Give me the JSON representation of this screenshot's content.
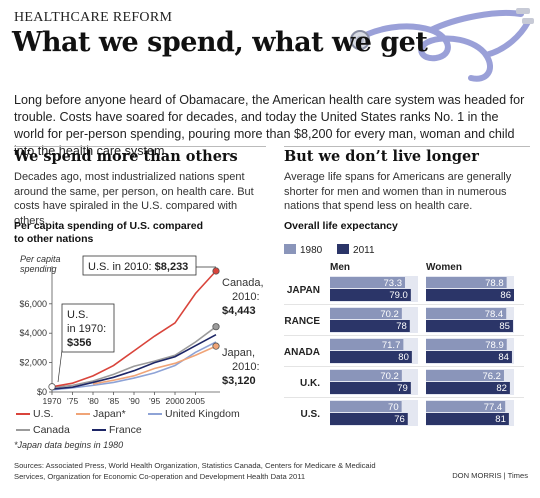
{
  "kicker": "HEALTHCARE REFORM",
  "headline": "What we spend, what we get",
  "intro": "Long before anyone heard of Obamacare, the American health care system was headed for trouble. Costs have soared for decades, and today the United States ranks No. 1 in the world for per-person spending, pouring more than $8,200 for every man, woman and child into the health care system.",
  "left": {
    "heading": "We spend more than others",
    "body": "Decades ago, most industrialized nations spent around the same, per person, on health care. But costs have spiraled in the U.S. compared with others."
  },
  "right": {
    "heading": "But we don’t live longer",
    "body": "Average life spans for Americans are generally shorter for men and women than in numerous nations that spend less on health care."
  },
  "colors": {
    "us": "#d9443b",
    "japan": "#f0a477",
    "uk": "#8ea3d6",
    "canada": "#9b9b9b",
    "france": "#1d2666",
    "bar1980": "#8a95ba",
    "bar2011": "#2b3568",
    "rowbg": "#e4e7f1"
  },
  "spending_chart_text": {
    "title_line1": "Per capita spending of U.S. compared",
    "title_line2": "to other nations",
    "yaxis_label_line1": "Per capita",
    "yaxis_label_line2": "spending",
    "callout_us2010": "U.S. in 2010: ",
    "callout_us2010_value": "$8,233",
    "callout_us1970_l1": "U.S.",
    "callout_us1970_l2": "in 1970:",
    "callout_us1970_value": "$356",
    "callout_canada_l1": "Canada,",
    "callout_canada_l2": "2010:",
    "callout_canada_value": "$4,443",
    "callout_japan_l1": "Japan,",
    "callout_japan_l2": "2010:",
    "callout_japan_value": "$3,120",
    "legend": [
      "U.S.",
      "Japan*",
      "United Kingdom",
      "Canada",
      "France"
    ],
    "footnote": "*Japan data begins in 1980"
  },
  "life_chart_text": {
    "title": "Overall life expectancy",
    "legend_1980": "1980",
    "legend_2011": "2011",
    "men_header": "Men",
    "women_header": "Women"
  },
  "sources": "Sources: Associated Press, World Health Organization, Statistics Canada, Centers for Medicare & Medicaid Services, Organization for Economic Co-operation and Development Health Data 2011",
  "credit": "DON MORRIS  |  Times",
  "chart_data": [
    {
      "type": "line",
      "title": "Per capita spending of U.S. compared to other nations",
      "ylabel": "Per capita spending",
      "x": [
        1970,
        1975,
        1980,
        1985,
        1990,
        1995,
        2000,
        2005,
        2010
      ],
      "xticks": [
        "1970",
        "’75",
        "’80",
        "’85",
        "’90",
        "’95",
        "2000",
        "2005"
      ],
      "yticks": [
        "$0",
        "$2,000",
        "$4,000",
        "$6,000"
      ],
      "ylim": [
        0,
        8300
      ],
      "xlim": [
        1970,
        2010
      ],
      "series": [
        {
          "name": "U.S.",
          "values": [
            356,
            600,
            1100,
            1800,
            2800,
            3800,
            4700,
            6700,
            8233
          ]
        },
        {
          "name": "Japan*",
          "values": [
            null,
            null,
            550,
            800,
            1100,
            1600,
            1950,
            2500,
            3120
          ]
        },
        {
          "name": "United Kingdom",
          "values": [
            150,
            280,
            450,
            650,
            950,
            1300,
            1800,
            2700,
            3400
          ]
        },
        {
          "name": "Canada",
          "values": [
            300,
            450,
            750,
            1200,
            1750,
            2100,
            2500,
            3400,
            4443
          ]
        },
        {
          "name": "France",
          "values": [
            200,
            330,
            650,
            1000,
            1450,
            2000,
            2400,
            3150,
            3900
          ]
        }
      ],
      "legend_position": "bottom",
      "grid": false
    },
    {
      "type": "bar",
      "title": "Overall life expectancy",
      "categories": [
        "JAPAN",
        "FRANCE",
        "CANADA",
        "U.K.",
        "U.S."
      ],
      "series": [
        {
          "name": "1980",
          "group": "Men",
          "values": [
            73.3,
            70.2,
            71.7,
            70.2,
            70
          ]
        },
        {
          "name": "2011",
          "group": "Men",
          "values": [
            79.0,
            78,
            80,
            79,
            76
          ]
        },
        {
          "name": "1980",
          "group": "Women",
          "values": [
            78.8,
            78.4,
            78.9,
            76.2,
            77.4
          ]
        },
        {
          "name": "2011",
          "group": "Women",
          "values": [
            86,
            85,
            84,
            82,
            81
          ]
        }
      ],
      "labels": {
        "men_1980": [
          "73.3",
          "70.2",
          "71.7",
          "70.2",
          "70"
        ],
        "men_2011": [
          "79.0",
          "78",
          "80",
          "79",
          "76"
        ],
        "women_1980": [
          "78.8",
          "78.4",
          "78.9",
          "76.2",
          "77.4"
        ],
        "women_2011": [
          "86",
          "85",
          "84",
          "82",
          "81"
        ]
      },
      "xlim": [
        0,
        86
      ]
    }
  ]
}
